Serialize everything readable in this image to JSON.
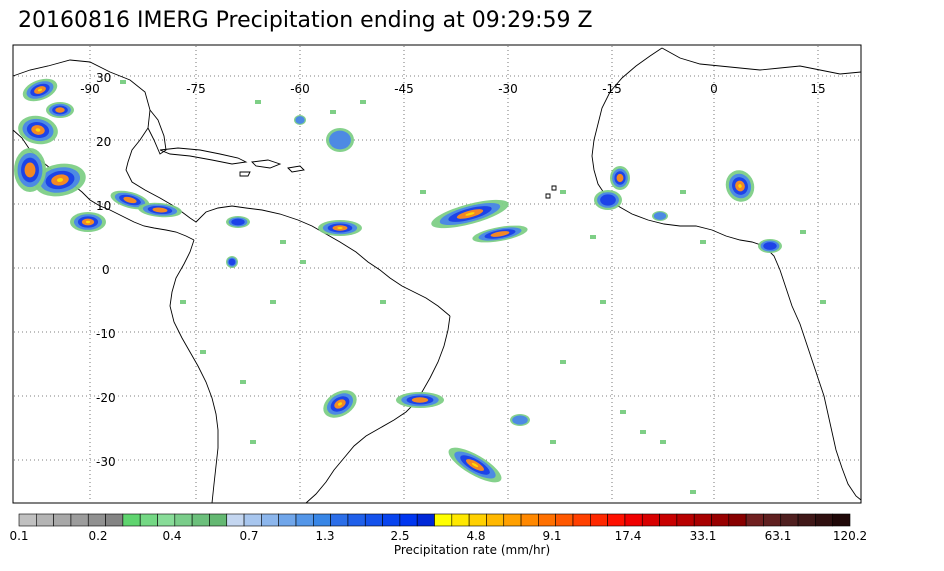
{
  "title": "20160816 IMERG Precipitation ending at 09:29:59 Z",
  "map": {
    "lon_labels": [
      "-90",
      "-75",
      "-60",
      "-45",
      "-30",
      "-15",
      "0",
      "15"
    ],
    "lat_labels": [
      "30",
      "20",
      "10",
      "0",
      "-10",
      "-20",
      "-30"
    ],
    "land_color": "#ffffff",
    "grid_style": "dotted"
  },
  "colorbar": {
    "title": "Precipitation rate (mm/hr)",
    "labels": [
      "0.1",
      "0.2",
      "0.4",
      "0.7",
      "1.3",
      "2.5",
      "4.8",
      "9.1",
      "17.4",
      "33.1",
      "63.1",
      "120.2"
    ],
    "colors": [
      "#c0c0c0",
      "#b4b4b4",
      "#a8a8a8",
      "#9c9c9c",
      "#909090",
      "#848484",
      "#5fd46f",
      "#74d884",
      "#88dc98",
      "#7acd8a",
      "#6cc07c",
      "#64b872",
      "#c4d6f0",
      "#a8c6ee",
      "#8cb6ec",
      "#70a6ea",
      "#5496e8",
      "#3886e6",
      "#2c6ee8",
      "#2060ea",
      "#1452ec",
      "#0844ee",
      "#0036f0",
      "#0028d8",
      "#ffff00",
      "#ffe800",
      "#ffd000",
      "#ffb800",
      "#ffa000",
      "#ff8800",
      "#ff7000",
      "#ff5800",
      "#ff4000",
      "#ff2800",
      "#ff1000",
      "#f00000",
      "#d80000",
      "#c80000",
      "#b80000",
      "#a80000",
      "#980000",
      "#880000",
      "#702020",
      "#602020",
      "#502020",
      "#401818",
      "#301010",
      "#200808"
    ]
  },
  "storm_colors": {
    "light": "#7ecf86",
    "moderate": "#4a86e8",
    "heavy": "#1a3fe8",
    "intense": "#ff8c1a",
    "extreme": "#ffe000"
  }
}
